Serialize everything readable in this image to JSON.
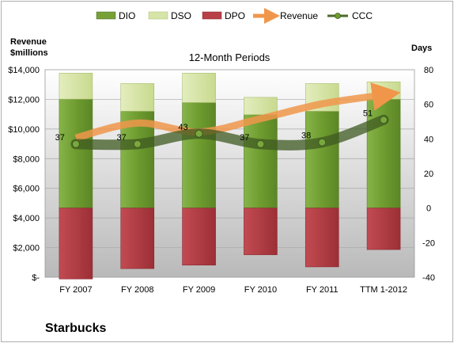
{
  "chart_data": {
    "type": "bar",
    "title": "12-Month Periods",
    "company": "Starbucks",
    "categories": [
      "FY 2007",
      "FY 2008",
      "FY 2009",
      "FY 2010",
      "FY 2011",
      "TTM 1-2012"
    ],
    "left_axis": {
      "label_line1": "Revenue",
      "label_line2": "$millions",
      "ylim": [
        0,
        14000
      ],
      "ticks": [
        "$-",
        "$2,000",
        "$4,000",
        "$6,000",
        "$8,000",
        "$10,000",
        "$12,000",
        "$14,000"
      ]
    },
    "right_axis": {
      "label": "Days",
      "ylim": [
        -40,
        80
      ],
      "ticks": [
        "-40",
        "-20",
        "0",
        "20",
        "40",
        "60",
        "80"
      ]
    },
    "series": [
      {
        "name": "DIO",
        "axis": "days",
        "values": [
          63,
          56,
          61,
          54,
          56,
          63
        ],
        "color": "#77a037"
      },
      {
        "name": "DSO",
        "axis": "days",
        "values": [
          15,
          16,
          17,
          10,
          16,
          10
        ],
        "color": "#d7e4a7"
      },
      {
        "name": "DPO",
        "axis": "days",
        "values": [
          -41,
          -35,
          -33,
          -27,
          -34,
          -24
        ],
        "color": "#b84047"
      },
      {
        "name": "Revenue",
        "axis": "revenue",
        "values": [
          9400,
          10400,
          9800,
          10700,
          11700,
          12300
        ],
        "color": "#f0964b"
      },
      {
        "name": "CCC",
        "axis": "days",
        "values": [
          37,
          37,
          43,
          37,
          38,
          51
        ],
        "color": "#4d6b2a"
      }
    ],
    "ccc_labels": [
      "37",
      "37",
      "43",
      "37",
      "38",
      "51"
    ],
    "legend": [
      "DIO",
      "DSO",
      "DPO",
      "Revenue",
      "CCC"
    ],
    "legend_position": "top",
    "grid": true
  }
}
